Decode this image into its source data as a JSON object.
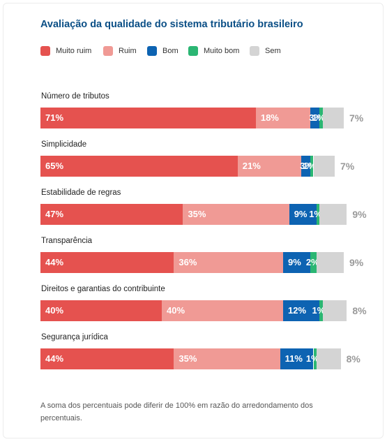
{
  "chart_data": {
    "type": "bar",
    "orientation": "horizontal",
    "stacked": true,
    "title": "Avaliação da qualidade do sistema tributário brasileiro",
    "legend_position": "top-left",
    "series": [
      {
        "name": "Muito ruim",
        "color": "#e5524f"
      },
      {
        "name": "Ruim",
        "color": "#f09a95"
      },
      {
        "name": "Bom",
        "color": "#0d63b2"
      },
      {
        "name": "Muito bom",
        "color": "#2bb673"
      },
      {
        "name": "Sem",
        "color": "#d4d4d4"
      }
    ],
    "categories": [
      {
        "label": "Número de tributos",
        "values": [
          71,
          18,
          3,
          1,
          7
        ],
        "labels": [
          "71%",
          "18%",
          "3%",
          "1%",
          "7%"
        ]
      },
      {
        "label": "Simplicidade",
        "values": [
          65,
          21,
          3,
          1,
          7
        ],
        "labels": [
          "65%",
          "21%",
          "3%",
          "1%",
          "7%"
        ]
      },
      {
        "label": "Estabilidade de regras",
        "values": [
          47,
          35,
          9,
          1,
          9
        ],
        "labels": [
          "47%",
          "35%",
          "9%",
          "1%",
          "9%"
        ]
      },
      {
        "label": "Transparência",
        "values": [
          44,
          36,
          9,
          2,
          9
        ],
        "labels": [
          "44%",
          "36%",
          "9%",
          "2%",
          "9%"
        ]
      },
      {
        "label": "Direitos e garantias do contribuinte",
        "values": [
          40,
          40,
          12,
          1,
          8
        ],
        "labels": [
          "40%",
          "40%",
          "12%",
          "1%",
          "8%"
        ]
      },
      {
        "label": "Segurança jurídica",
        "values": [
          44,
          35,
          11,
          1,
          8
        ],
        "labels": [
          "44%",
          "35%",
          "11%",
          "1%",
          "8%"
        ]
      }
    ]
  },
  "note": "A soma dos percentuais pode diferir de 100% em razão do arredondamento dos percentuais."
}
